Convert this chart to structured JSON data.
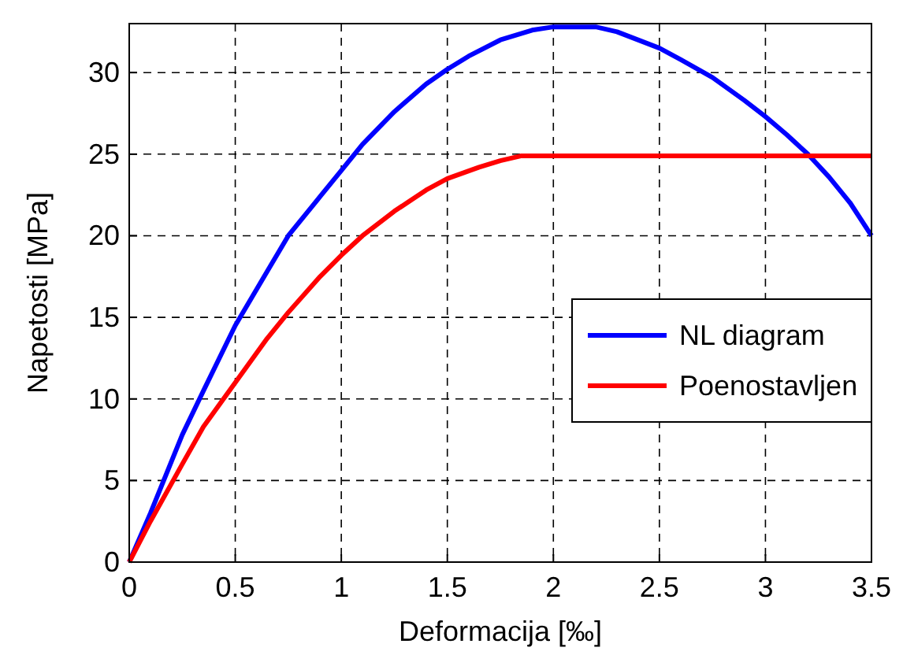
{
  "chart_data": {
    "type": "line",
    "xlabel": "Deformacija [‰]",
    "ylabel": "Napetosti [MPa]",
    "xlim": [
      0,
      3.5
    ],
    "ylim": [
      0,
      33
    ],
    "xticks": [
      0,
      0.5,
      1,
      1.5,
      2,
      2.5,
      3,
      3.5
    ],
    "yticks": [
      0,
      5,
      10,
      15,
      20,
      25,
      30
    ],
    "grid": true,
    "legend": "right",
    "line_style": "solid",
    "marker": "none",
    "series": [
      {
        "name": "NL diagram",
        "color": "#0000ff",
        "x": [
          0,
          0.1,
          0.25,
          0.35,
          0.5,
          0.65,
          0.75,
          0.9,
          1,
          1.1,
          1.25,
          1.4,
          1.5,
          1.6,
          1.75,
          1.9,
          2,
          2.2,
          2.3,
          2.5,
          2.6,
          2.75,
          2.9,
          3,
          3.1,
          3.2,
          3.3,
          3.4,
          3.5
        ],
        "values": [
          0,
          3,
          7.8,
          10.5,
          14.5,
          17.8,
          20,
          22.4,
          24,
          25.6,
          27.6,
          29.3,
          30.2,
          31,
          32,
          32.6,
          32.8,
          32.8,
          32.5,
          31.5,
          30.8,
          29.7,
          28.3,
          27.3,
          26.2,
          25,
          23.6,
          22,
          20
        ]
      },
      {
        "name": "Poenostavljen",
        "color": "#ff0000",
        "x": [
          0,
          0.1,
          0.25,
          0.35,
          0.5,
          0.65,
          0.75,
          0.9,
          1,
          1.1,
          1.25,
          1.4,
          1.5,
          1.65,
          1.75,
          1.85,
          3.5
        ],
        "values": [
          0,
          2.5,
          6,
          8.3,
          11,
          13.7,
          15.3,
          17.5,
          18.8,
          20,
          21.5,
          22.8,
          23.5,
          24.2,
          24.6,
          24.9,
          24.9
        ]
      }
    ]
  }
}
